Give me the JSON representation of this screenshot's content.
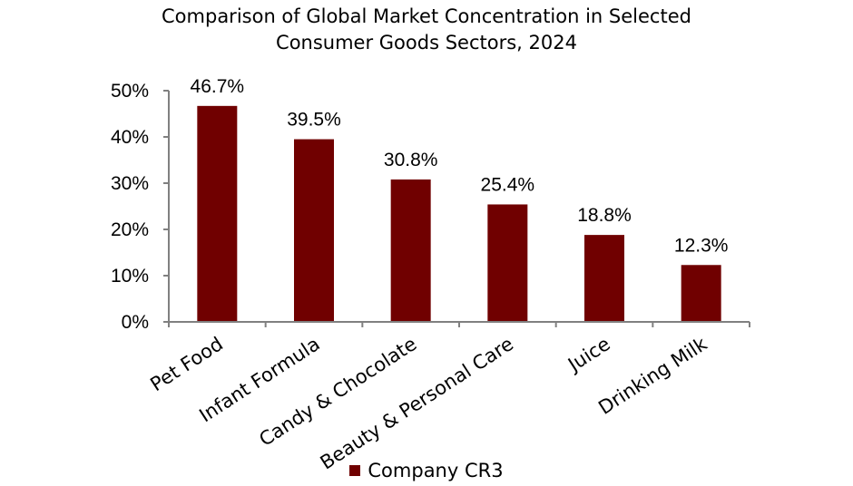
{
  "chart_data": {
    "type": "bar",
    "title_lines": [
      "Comparison of Global Market Concentration in Selected",
      "Consumer Goods Sectors, 2024"
    ],
    "categories": [
      "Pet Food",
      "Infant Formula",
      "Candy & Chocolate",
      "Beauty & Personal Care",
      "Juice",
      "Drinking Milk"
    ],
    "series": [
      {
        "name": "Company CR3",
        "values": [
          46.7,
          39.5,
          30.8,
          25.4,
          18.8,
          12.3
        ],
        "data_labels": [
          "46.7%",
          "39.5%",
          "30.8%",
          "25.4%",
          "18.8%",
          "12.3%"
        ],
        "color": "#700000"
      }
    ],
    "ylim": [
      0,
      50
    ],
    "yticks": [
      0,
      10,
      20,
      30,
      40,
      50
    ],
    "ytick_labels": [
      "0%",
      "10%",
      "20%",
      "30%",
      "40%",
      "50%"
    ],
    "grid": false,
    "legend_position": "bottom-center",
    "axis_color": "#808080"
  }
}
